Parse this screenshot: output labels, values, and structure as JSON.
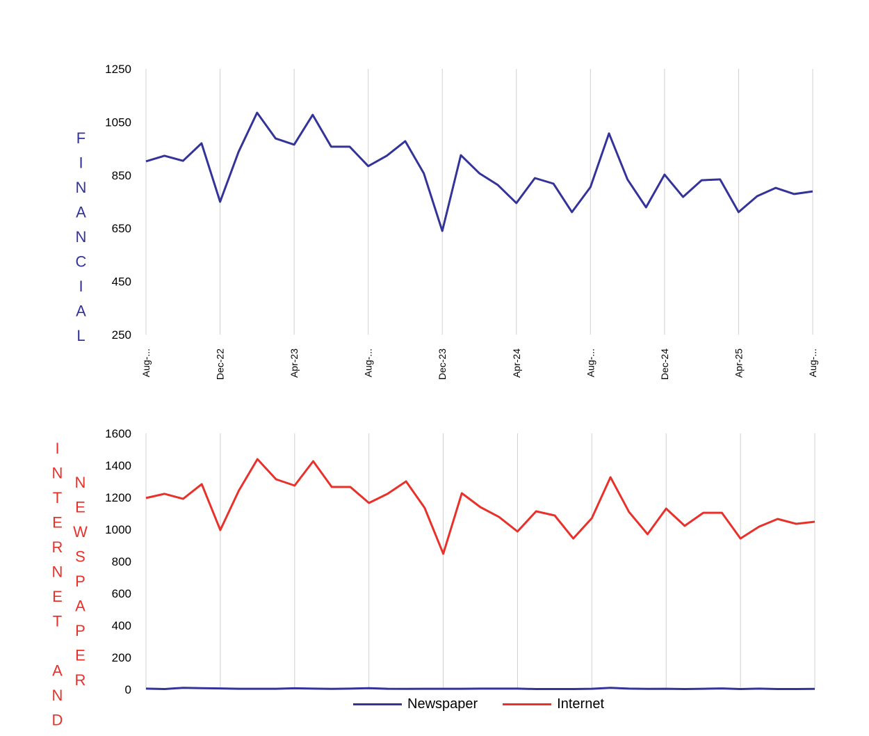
{
  "chart_data": [
    {
      "type": "line",
      "ylabel": "FINANCIAL",
      "ylim": [
        250,
        1250
      ],
      "yticks": [
        250,
        450,
        650,
        850,
        1050,
        1250
      ],
      "x_tick_labels": [
        "Aug-...",
        "Dec-22",
        "Apr-23",
        "Aug-...",
        "Dec-23",
        "Apr-24",
        "Aug-...",
        "Dec-24",
        "Apr-25",
        "Aug-..."
      ],
      "x_count": 37,
      "grid": "vertical",
      "series": [
        {
          "name": "Financial",
          "color": "#333399",
          "values": [
            902,
            923,
            904,
            970,
            750,
            938,
            1085,
            988,
            965,
            1077,
            957,
            957,
            884,
            923,
            978,
            857,
            640,
            925,
            857,
            813,
            745,
            839,
            818,
            711,
            805,
            1007,
            834,
            729,
            852,
            768,
            831,
            834,
            711,
            771,
            802,
            779,
            789
          ]
        }
      ]
    },
    {
      "type": "line",
      "ylabel": [
        "INTERNET AND",
        "NEWSPAPER"
      ],
      "ylim": [
        0,
        1600
      ],
      "yticks": [
        0,
        200,
        400,
        600,
        800,
        1000,
        1200,
        1400,
        1600
      ],
      "x_count": 37,
      "grid": "vertical",
      "legend": "bottom",
      "series": [
        {
          "name": "Newspaper",
          "color": "#333399",
          "values": [
            5,
            2,
            10,
            8,
            6,
            4,
            4,
            4,
            7,
            5,
            3,
            5,
            8,
            4,
            3,
            4,
            4,
            4,
            5,
            5,
            5,
            2,
            2,
            2,
            4,
            10,
            5,
            3,
            4,
            2,
            4,
            6,
            2,
            5,
            2,
            2,
            3
          ]
        },
        {
          "name": "Internet",
          "color": "#e8312a",
          "values": [
            1196,
            1222,
            1191,
            1283,
            996,
            1243,
            1439,
            1313,
            1274,
            1426,
            1265,
            1265,
            1165,
            1222,
            1300,
            1135,
            848,
            1226,
            1139,
            1078,
            987,
            1113,
            1087,
            943,
            1070,
            1326,
            1109,
            970,
            1130,
            1022,
            1104,
            1104,
            943,
            1017,
            1065,
            1035,
            1048
          ]
        }
      ]
    }
  ]
}
